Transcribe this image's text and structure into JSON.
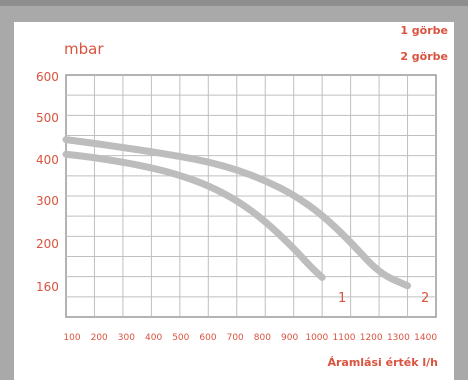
{
  "chart_data": {
    "type": "line",
    "title": "",
    "ylabel": "mbar",
    "xlabel": "Áramlási érték l/h",
    "legend": [
      "1 görbe",
      "2 görbe"
    ],
    "xlim": [
      100,
      1400
    ],
    "ylim": [
      100,
      600
    ],
    "x_ticks": [
      100,
      200,
      300,
      400,
      500,
      600,
      700,
      800,
      900,
      1000,
      1100,
      1200,
      1300,
      1400
    ],
    "y_ticks": [
      600,
      500,
      400,
      300,
      200,
      160
    ],
    "series": [
      {
        "name": "1",
        "x": [
          100,
          200,
          300,
          400,
          500,
          600,
          700,
          800,
          900,
          960,
          1000
        ],
        "y": [
          415,
          407,
          396,
          383,
          365,
          340,
          305,
          255,
          190,
          145,
          120
        ]
      },
      {
        "name": "2",
        "x": [
          100,
          200,
          300,
          400,
          500,
          600,
          700,
          800,
          900,
          1000,
          1100,
          1200,
          1300
        ],
        "y": [
          450,
          441,
          431,
          421,
          410,
          397,
          378,
          352,
          318,
          270,
          205,
          130,
          100
        ]
      }
    ],
    "curve_labels": [
      "1",
      "2"
    ],
    "colors": {
      "accent": "#d9533f",
      "grid": "#bfbfbf",
      "curve": "#bdbdbd",
      "frame": "#a9a9a9"
    }
  }
}
